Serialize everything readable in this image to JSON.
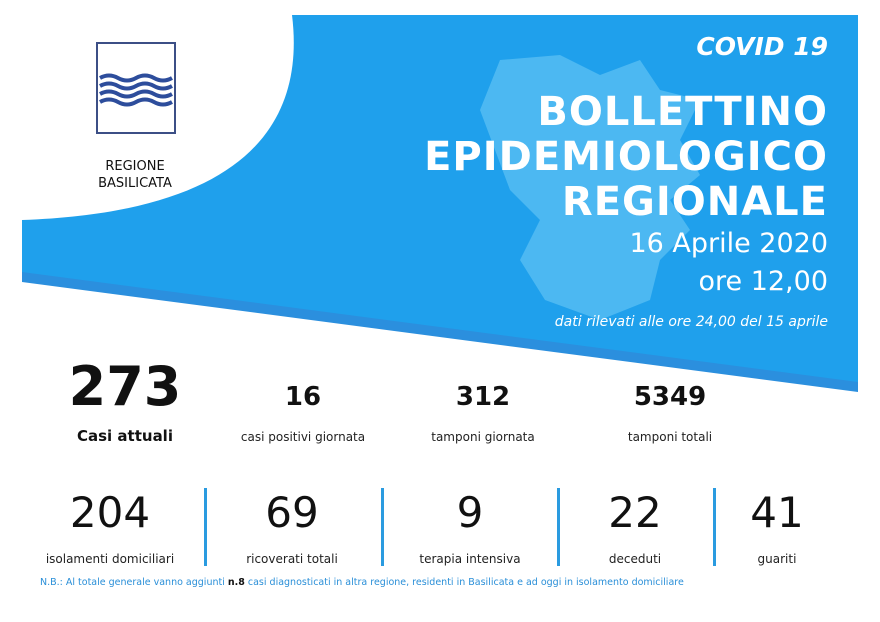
{
  "logo": {
    "name": [
      "REGIONE",
      "BASILICATA"
    ]
  },
  "header": {
    "tag": "COVID 19",
    "title": [
      "BOLLETTINO",
      "EPIDEMIOLOGICO",
      "REGIONALE"
    ],
    "date": "16 Aprile 2020",
    "time": "ore 12,00",
    "note": "dati rilevati alle ore 24,00 del 15 aprile"
  },
  "main_stats": [
    {
      "value": 273,
      "label": "Casi attuali"
    },
    {
      "value": 16,
      "label": "casi positivi giornata"
    },
    {
      "value": 312,
      "label": "tamponi giornata"
    },
    {
      "value": 5349,
      "label": "tamponi totali"
    }
  ],
  "detail_stats": [
    {
      "value": 204,
      "label": "isolamenti domiciliari"
    },
    {
      "value": 69,
      "label": "ricoverati totali"
    },
    {
      "value": 9,
      "label": "terapia intensiva"
    },
    {
      "value": 22,
      "label": "deceduti"
    },
    {
      "value": 41,
      "label": "guariti"
    }
  ],
  "footnote": {
    "before": "N.B.: Al totale generale vanno aggiunti ",
    "bold": "n.8",
    "after": " casi diagnosticati in altra regione, residenti in Basilicata e ad oggi in isolamento domiciliare"
  }
}
